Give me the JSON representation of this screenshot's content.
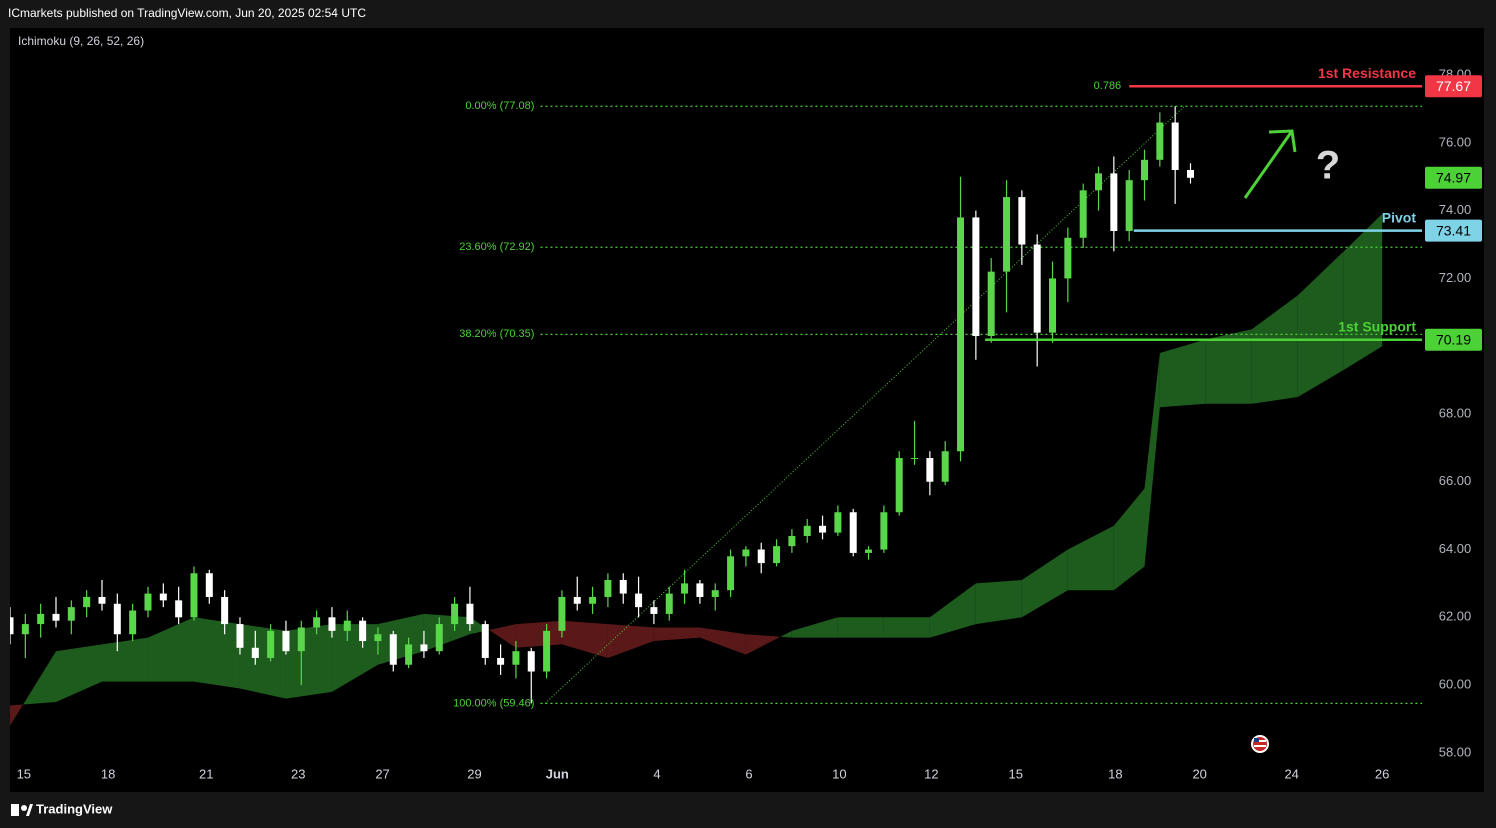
{
  "header": {
    "publisher": "ICmarkets published on TradingView.com, Jun 20, 2025 02:54 UTC",
    "indicator": "Ichimoku (9, 26, 52, 26)"
  },
  "footer": {
    "brand": "TradingView"
  },
  "chart_data": {
    "type": "candlestick",
    "x": [
      0,
      1,
      2,
      3,
      4,
      5,
      6,
      7,
      8,
      9,
      10,
      11,
      12,
      13,
      14,
      15,
      16,
      17,
      18,
      19,
      20,
      21,
      22,
      23,
      24,
      25,
      26,
      27,
      28,
      29,
      30,
      31,
      32,
      33,
      34,
      35,
      36,
      37,
      38,
      39,
      40,
      41,
      42,
      43,
      44,
      45,
      46,
      47,
      48,
      49,
      50,
      51,
      52,
      53,
      54,
      55,
      56,
      57,
      58,
      59,
      60,
      61,
      62,
      63,
      64,
      65,
      66,
      67,
      68,
      69,
      70,
      71,
      72,
      73,
      74,
      75,
      76,
      77
    ],
    "open": [
      62.0,
      61.5,
      61.8,
      62.1,
      61.9,
      62.3,
      62.6,
      62.4,
      61.5,
      62.2,
      62.7,
      62.5,
      62.0,
      63.3,
      62.6,
      61.8,
      61.1,
      60.8,
      61.6,
      61.0,
      61.7,
      62.0,
      61.6,
      61.9,
      61.3,
      61.5,
      60.6,
      61.2,
      61.0,
      61.8,
      62.4,
      61.8,
      60.8,
      60.6,
      61.0,
      60.4,
      61.6,
      62.6,
      62.4,
      62.6,
      63.1,
      62.7,
      62.3,
      62.1,
      62.7,
      63.0,
      62.6,
      62.8,
      63.8,
      64.0,
      63.6,
      64.1,
      64.4,
      64.7,
      64.5,
      65.1,
      63.9,
      64.0,
      65.1,
      66.7,
      66.7,
      66.0,
      66.9,
      73.8,
      70.3,
      72.2,
      74.4,
      73.0,
      70.4,
      72.0,
      73.2,
      74.6,
      75.1,
      73.4,
      74.9,
      75.5,
      76.6,
      75.2
    ],
    "high": [
      62.3,
      62.1,
      62.4,
      62.6,
      62.5,
      62.8,
      63.1,
      62.7,
      62.4,
      62.9,
      63.0,
      62.9,
      63.5,
      63.4,
      62.8,
      62.0,
      61.6,
      61.8,
      61.9,
      61.9,
      62.2,
      62.3,
      62.2,
      62.0,
      61.7,
      61.6,
      61.4,
      61.6,
      62.0,
      62.6,
      62.9,
      61.9,
      61.2,
      61.3,
      61.1,
      61.8,
      62.8,
      63.2,
      62.9,
      63.3,
      63.3,
      63.2,
      62.5,
      62.9,
      63.4,
      63.1,
      63.0,
      64.0,
      64.1,
      64.2,
      64.3,
      64.6,
      64.9,
      65.0,
      65.3,
      65.2,
      64.1,
      65.3,
      66.9,
      67.8,
      66.9,
      67.2,
      75.0,
      74.0,
      72.6,
      74.9,
      74.6,
      73.3,
      72.5,
      73.5,
      74.8,
      75.3,
      75.6,
      75.2,
      75.8,
      76.9,
      77.08,
      75.4
    ],
    "low": [
      61.2,
      60.8,
      61.4,
      61.7,
      61.5,
      62.0,
      62.2,
      61.0,
      61.3,
      62.0,
      62.3,
      61.8,
      61.9,
      62.4,
      61.5,
      60.9,
      60.6,
      60.7,
      60.9,
      60.0,
      61.5,
      61.4,
      61.3,
      61.1,
      60.9,
      60.4,
      60.5,
      60.8,
      60.9,
      61.6,
      61.6,
      60.6,
      60.3,
      60.2,
      59.46,
      60.2,
      61.4,
      62.2,
      62.1,
      62.3,
      62.4,
      62.0,
      61.8,
      61.9,
      62.4,
      62.4,
      62.2,
      62.6,
      63.5,
      63.3,
      63.5,
      63.9,
      64.2,
      64.3,
      64.4,
      63.8,
      63.7,
      63.9,
      65.0,
      66.5,
      65.6,
      65.9,
      66.6,
      69.6,
      70.1,
      71.0,
      72.4,
      69.4,
      70.1,
      71.3,
      72.9,
      74.0,
      72.8,
      73.1,
      74.3,
      75.3,
      74.2,
      74.8
    ],
    "close": [
      61.5,
      61.8,
      62.1,
      61.9,
      62.3,
      62.6,
      62.4,
      61.5,
      62.2,
      62.7,
      62.5,
      62.0,
      63.3,
      62.6,
      61.8,
      61.1,
      60.8,
      61.6,
      61.0,
      61.7,
      62.0,
      61.6,
      61.9,
      61.3,
      61.5,
      60.6,
      61.2,
      61.0,
      61.8,
      62.4,
      61.8,
      60.8,
      60.6,
      61.0,
      60.4,
      61.6,
      62.6,
      62.4,
      62.6,
      63.1,
      62.7,
      62.3,
      62.1,
      62.7,
      63.0,
      62.6,
      62.8,
      63.8,
      64.0,
      63.6,
      64.1,
      64.4,
      64.7,
      64.5,
      65.1,
      63.9,
      64.0,
      65.1,
      66.7,
      66.7,
      66.0,
      66.9,
      73.8,
      70.3,
      72.2,
      74.4,
      73.0,
      70.4,
      72.0,
      73.2,
      74.6,
      75.1,
      73.4,
      74.9,
      75.5,
      76.6,
      75.2,
      74.97
    ],
    "up_color": "#5ad64a",
    "down_color": "#ffffff",
    "cloud": {
      "x": [
        0,
        3,
        6,
        9,
        12,
        15,
        18,
        21,
        24,
        27,
        30,
        33,
        36,
        39,
        42,
        45,
        48,
        51,
        54,
        57,
        60,
        63,
        66,
        69,
        72,
        74,
        75,
        78,
        81,
        84,
        87,
        89.5
      ],
      "span_a": [
        58.8,
        61.0,
        61.2,
        61.4,
        62.0,
        61.8,
        61.6,
        61.8,
        61.8,
        62.1,
        62.0,
        61.1,
        61.2,
        60.8,
        61.3,
        61.4,
        60.9,
        61.6,
        62.0,
        62.0,
        62.0,
        63.0,
        63.1,
        64.0,
        64.7,
        65.8,
        69.8,
        70.2,
        70.5,
        71.5,
        72.8,
        73.9
      ],
      "span_b": [
        59.4,
        59.5,
        60.1,
        60.1,
        60.1,
        59.9,
        59.6,
        59.8,
        60.6,
        61.0,
        61.5,
        61.8,
        61.9,
        61.8,
        61.7,
        61.7,
        61.5,
        61.4,
        61.4,
        61.4,
        61.4,
        61.8,
        62.0,
        62.8,
        62.8,
        63.5,
        68.2,
        68.3,
        68.3,
        68.5,
        69.3,
        70.0
      ],
      "up_color": "#1e5c1e",
      "down_color": "#5a1818"
    },
    "fib": {
      "levels": [
        {
          "value": 77.08,
          "label": "0.00% (77.08)"
        },
        {
          "value": 72.92,
          "label": "23.60% (72.92)"
        },
        {
          "value": 70.35,
          "label": "38.20% (70.35)"
        },
        {
          "value": 59.46,
          "label": "100.00% (59.46)"
        }
      ],
      "from": 34.6,
      "trend_x": [
        34.9,
        76.6
      ],
      "color": "#4cd137"
    },
    "levels": [
      {
        "name": "1st Resistance",
        "value": 77.67,
        "color": "#f23645",
        "from": 73.0,
        "note": "0.786"
      },
      {
        "name": "Pivot",
        "value": 73.41,
        "color": "#7fd3e6",
        "from": 73.3
      },
      {
        "name": "1st Support",
        "value": 70.19,
        "color": "#4cd137",
        "from": 63.6
      }
    ],
    "last_color": "#4cd137",
    "annotation": "?",
    "xlim": [
      0,
      92.1
    ],
    "ylim": [
      57.73,
      79.39
    ],
    "xticks": [
      {
        "value": 0.9,
        "label": "15"
      },
      {
        "value": 6.4,
        "label": "18"
      },
      {
        "value": 12.8,
        "label": "21"
      },
      {
        "value": 18.8,
        "label": "23"
      },
      {
        "value": 24.3,
        "label": "27"
      },
      {
        "value": 30.3,
        "label": "29"
      },
      {
        "value": 35.7,
        "label": "Jun"
      },
      {
        "value": 42.2,
        "label": "4"
      },
      {
        "value": 48.2,
        "label": "6"
      },
      {
        "value": 54.1,
        "label": "10"
      },
      {
        "value": 60.1,
        "label": "12"
      },
      {
        "value": 65.6,
        "label": "15"
      },
      {
        "value": 72.1,
        "label": "18"
      },
      {
        "value": 77.6,
        "label": "20"
      },
      {
        "value": 83.6,
        "label": "24"
      },
      {
        "value": 89.5,
        "label": "26"
      }
    ],
    "yticks": [
      {
        "value": 58,
        "label": "58.00"
      },
      {
        "value": 60,
        "label": "60.00"
      },
      {
        "value": 62,
        "label": "62.00"
      },
      {
        "value": 64,
        "label": "64.00"
      },
      {
        "value": 66,
        "label": "66.00"
      },
      {
        "value": 68,
        "label": "68.00"
      },
      {
        "value": 70,
        "label": "70.00"
      },
      {
        "value": 72,
        "label": "72.00"
      },
      {
        "value": 74,
        "label": "74.00"
      },
      {
        "value": 76,
        "label": "76.00"
      },
      {
        "value": 78,
        "label": "78.00"
      }
    ],
    "grid": false
  }
}
